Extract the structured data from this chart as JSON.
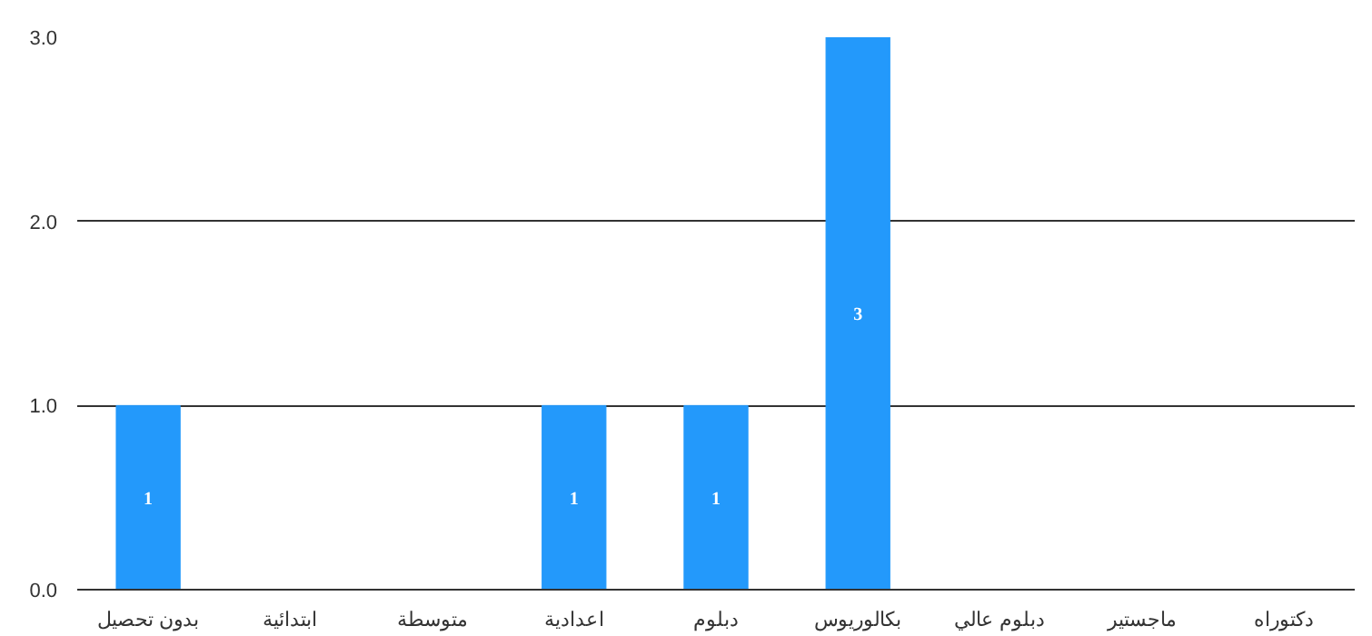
{
  "chart_data": {
    "type": "bar",
    "categories": [
      "بدون تحصيل",
      "ابتدائية",
      "متوسطة",
      "اعدادية",
      "دبلوم",
      "بكالوريوس",
      "دبلوم عالي",
      "ماجستير",
      "دكتوراه"
    ],
    "values": [
      1,
      0,
      0,
      1,
      1,
      3,
      0,
      0,
      0
    ],
    "value_labels": [
      "1",
      null,
      null,
      "1",
      "1",
      "3",
      null,
      null,
      null
    ],
    "color": "#2399fb",
    "ylim": [
      0,
      3
    ],
    "yticks": [
      {
        "value": 0,
        "label": "0.0"
      },
      {
        "value": 1,
        "label": "1.0"
      },
      {
        "value": 2,
        "label": "2.0"
      },
      {
        "value": 3,
        "label": "3.0"
      }
    ],
    "grid": "y"
  }
}
